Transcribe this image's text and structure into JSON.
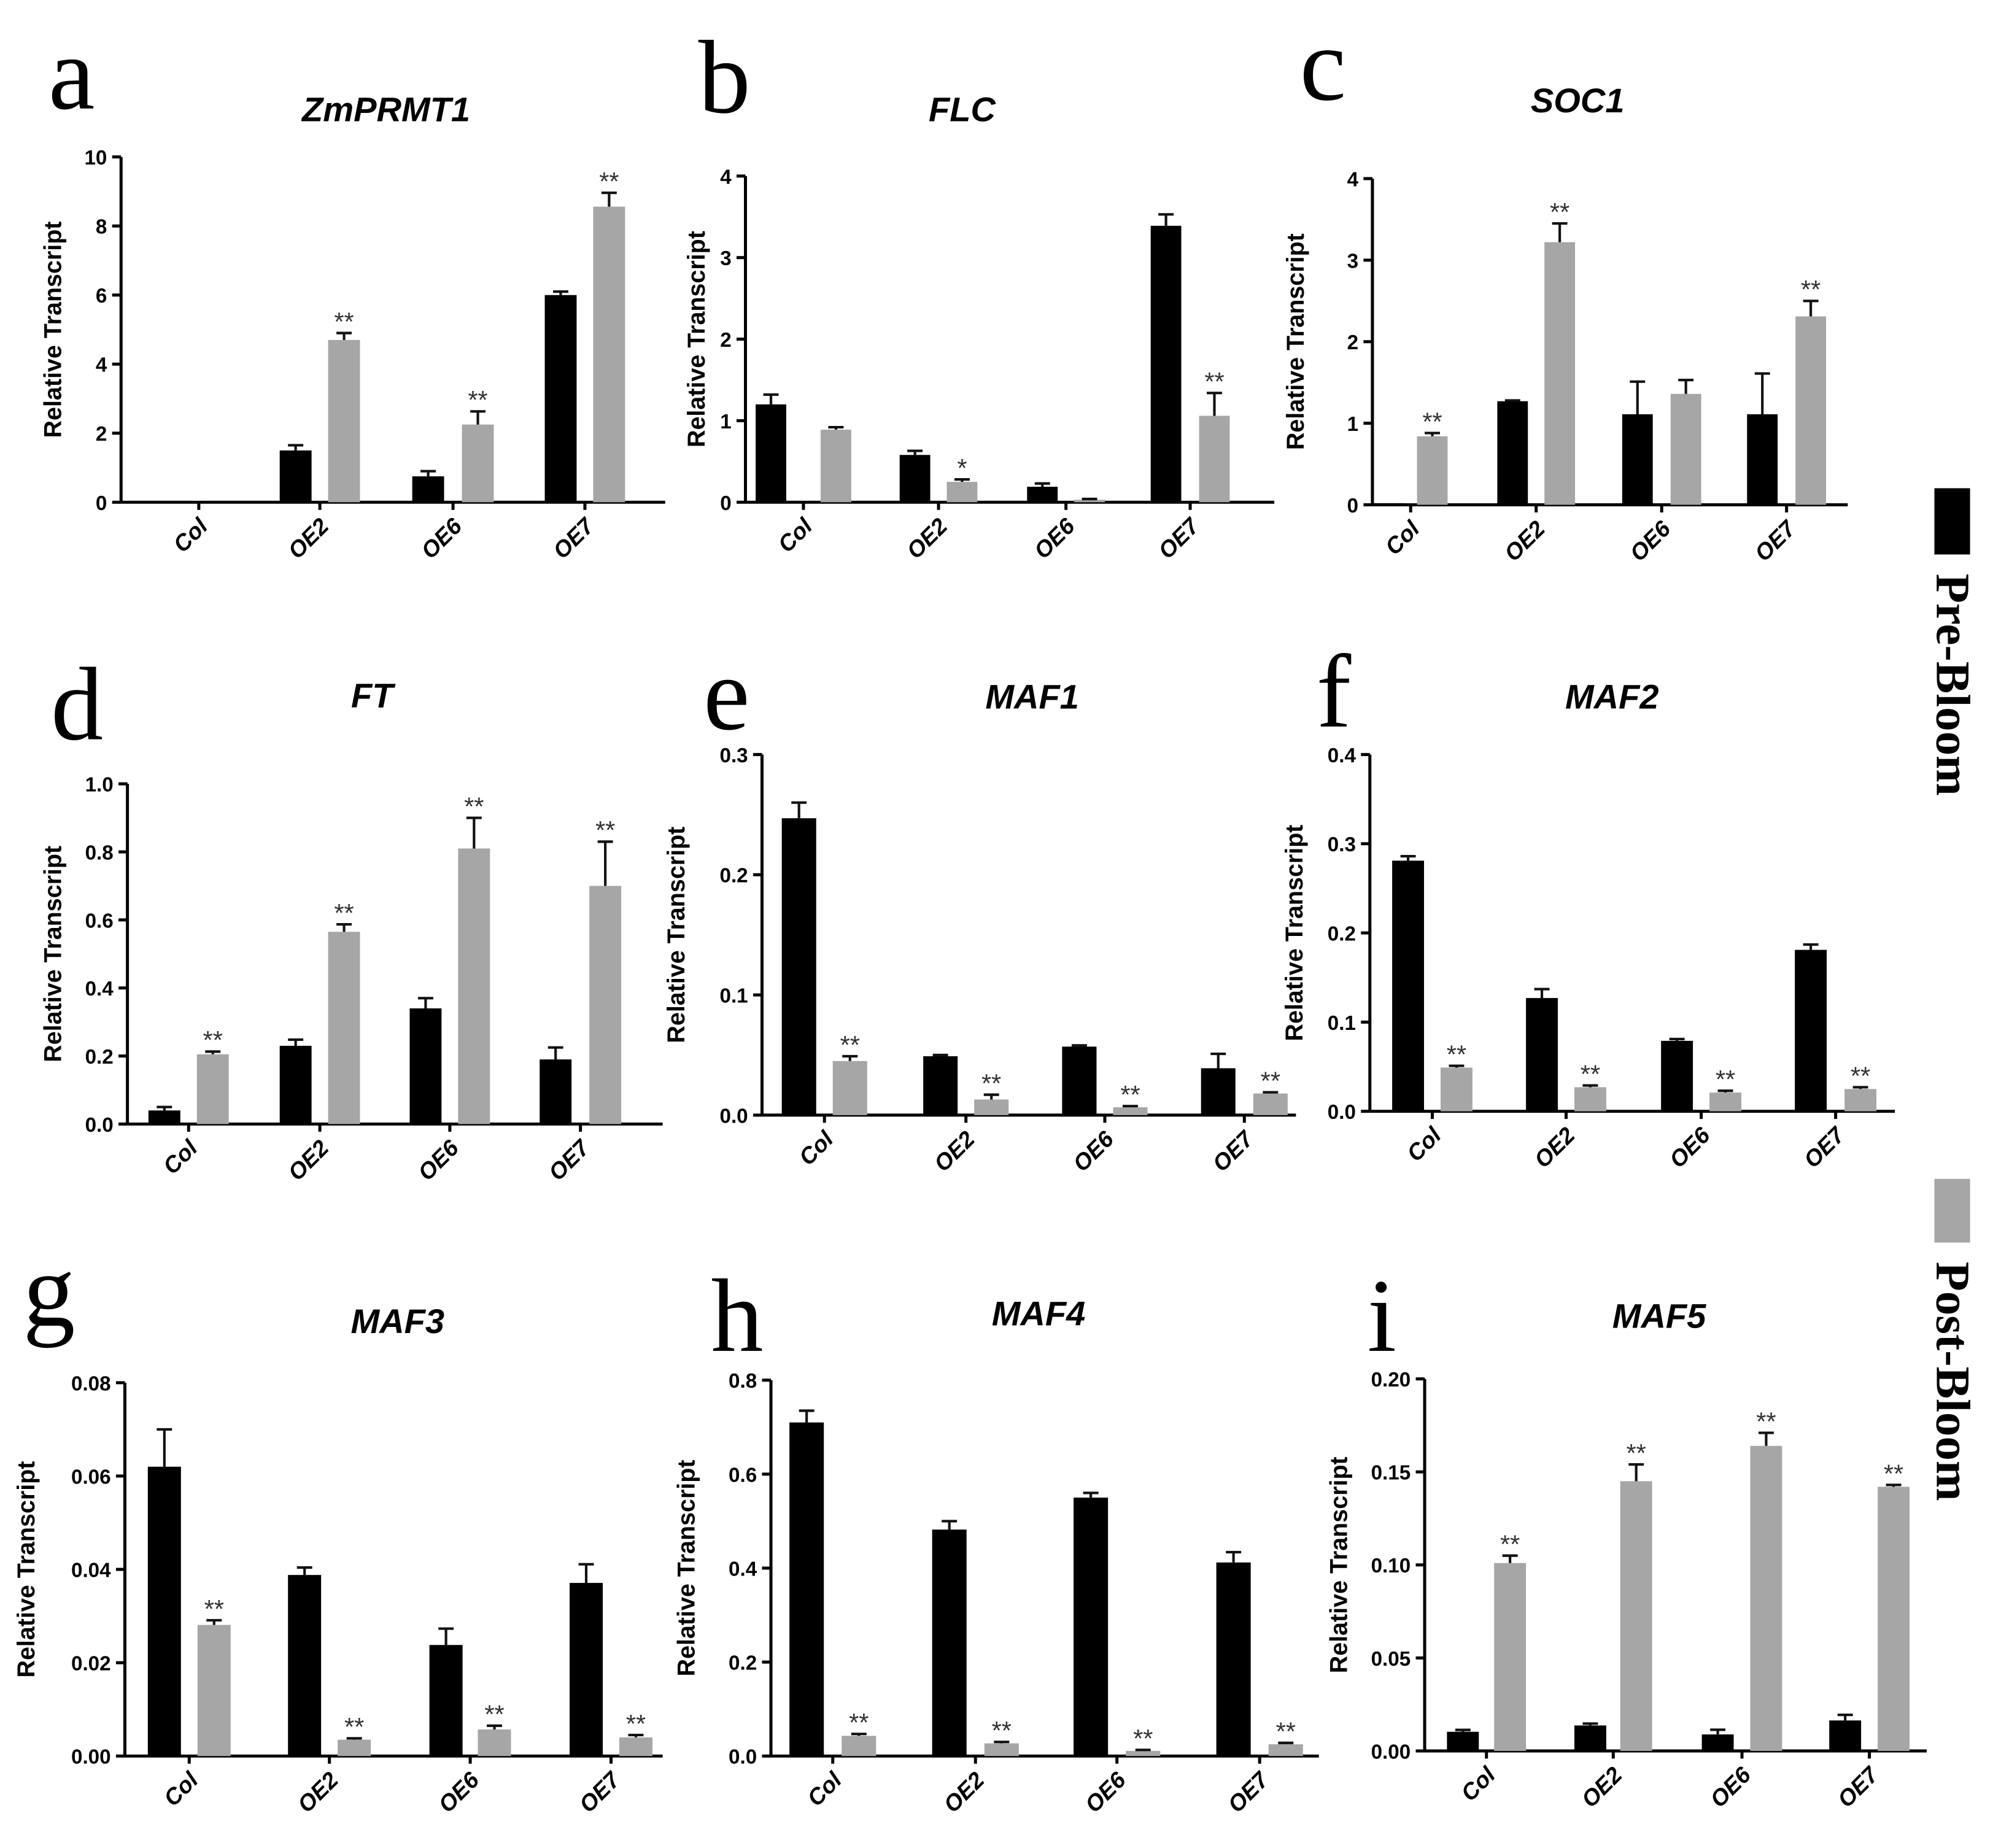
{
  "legend": [
    {
      "label": "Pre-Bloom",
      "color": "#000000"
    },
    {
      "label": "Post-Bloom",
      "color": "#a6a6a6"
    }
  ],
  "chart_data": [
    {
      "panel": "a",
      "type": "bar",
      "title": "ZmPRMT1",
      "ylabel": "Relative Transcript",
      "categories": [
        "Col",
        "OE2",
        "OE6",
        "OE7"
      ],
      "ylim": [
        0,
        10
      ],
      "ytick_labels": [
        "0",
        "2",
        "4",
        "6",
        "8",
        "10"
      ],
      "series": [
        {
          "name": "Pre-Bloom",
          "values": [
            0,
            1.5,
            0.75,
            6.0
          ],
          "errors": [
            0,
            0.15,
            0.15,
            0.1
          ]
        },
        {
          "name": "Post-Bloom",
          "values": [
            0,
            4.7,
            2.25,
            8.56
          ],
          "errors": [
            0,
            0.2,
            0.38,
            0.4
          ],
          "significance": [
            "",
            "**",
            "**",
            "**"
          ]
        }
      ]
    },
    {
      "panel": "b",
      "type": "bar",
      "title": "FLC",
      "ylabel": "Relative Transcript",
      "categories": [
        "Col",
        "OE2",
        "OE6",
        "OE7"
      ],
      "ylim": [
        0,
        4
      ],
      "ytick_labels": [
        "0",
        "1",
        "2",
        "3",
        "4"
      ],
      "series": [
        {
          "name": "Pre-Bloom",
          "values": [
            1.2,
            0.58,
            0.19,
            3.39
          ],
          "errors": [
            0.12,
            0.05,
            0.04,
            0.14
          ]
        },
        {
          "name": "Post-Bloom",
          "values": [
            0.89,
            0.25,
            0.03,
            1.06
          ],
          "errors": [
            0.03,
            0.03,
            0.01,
            0.28
          ],
          "significance": [
            "",
            "*",
            "",
            "**"
          ]
        }
      ]
    },
    {
      "panel": "c",
      "type": "bar",
      "title": "SOC1",
      "ylabel": "Relative Transcript",
      "categories": [
        "Col",
        "OE2",
        "OE6",
        "OE7"
      ],
      "ylim": [
        0,
        4
      ],
      "ytick_labels": [
        "0",
        "1",
        "2",
        "3",
        "4"
      ],
      "series": [
        {
          "name": "Pre-Bloom",
          "values": [
            0.02,
            1.27,
            1.11,
            1.11
          ],
          "errors": [
            0,
            0.01,
            0.4,
            0.5
          ]
        },
        {
          "name": "Post-Bloom",
          "values": [
            0.84,
            3.22,
            1.36,
            2.31
          ],
          "errors": [
            0.04,
            0.23,
            0.17,
            0.19
          ],
          "significance": [
            "**",
            "**",
            "",
            "**"
          ]
        }
      ]
    },
    {
      "panel": "d",
      "type": "bar",
      "title": "FT",
      "ylabel": "Relative Transcript",
      "categories": [
        "Col",
        "OE2",
        "OE6",
        "OE7"
      ],
      "ylim": [
        0,
        1.0
      ],
      "ytick_labels": [
        "0.0",
        "0.2",
        "0.4",
        "0.6",
        "0.8",
        "1.0"
      ],
      "series": [
        {
          "name": "Pre-Bloom",
          "values": [
            0.04,
            0.23,
            0.34,
            0.19
          ],
          "errors": [
            0.01,
            0.018,
            0.03,
            0.035
          ]
        },
        {
          "name": "Post-Bloom",
          "values": [
            0.205,
            0.565,
            0.81,
            0.7
          ],
          "errors": [
            0.008,
            0.022,
            0.09,
            0.13
          ],
          "significance": [
            "**",
            "**",
            "**",
            "**"
          ]
        }
      ]
    },
    {
      "panel": "e",
      "type": "bar",
      "title": "MAF1",
      "ylabel": "Relative Transcript",
      "categories": [
        "Col",
        "OE2",
        "OE6",
        "OE7"
      ],
      "ylim": [
        0,
        0.3
      ],
      "ytick_labels": [
        "0.0",
        "0.1",
        "0.2",
        "0.3"
      ],
      "series": [
        {
          "name": "Pre-Bloom",
          "values": [
            0.247,
            0.049,
            0.057,
            0.039
          ],
          "errors": [
            0.013,
            0.001,
            0.001,
            0.012
          ]
        },
        {
          "name": "Post-Bloom",
          "values": [
            0.045,
            0.013,
            0.0065,
            0.018
          ],
          "errors": [
            0.004,
            0.004,
            0.001,
            0.001
          ],
          "significance": [
            "**",
            "**",
            "**",
            "**"
          ]
        }
      ]
    },
    {
      "panel": "f",
      "type": "bar",
      "title": "MAF2",
      "ylabel": "Relative Transcript",
      "categories": [
        "Col",
        "OE2",
        "OE6",
        "OE7"
      ],
      "ylim": [
        0,
        0.4
      ],
      "ytick_labels": [
        "0.0",
        "0.1",
        "0.2",
        "0.3",
        "0.4"
      ],
      "series": [
        {
          "name": "Pre-Bloom",
          "values": [
            0.281,
            0.127,
            0.079,
            0.181
          ],
          "errors": [
            0.005,
            0.01,
            0.002,
            0.006
          ]
        },
        {
          "name": "Post-Bloom",
          "values": [
            0.049,
            0.027,
            0.021,
            0.025
          ],
          "errors": [
            0.002,
            0.002,
            0.002,
            0.002
          ],
          "significance": [
            "**",
            "**",
            "**",
            "**"
          ]
        }
      ]
    },
    {
      "panel": "g",
      "type": "bar",
      "title": "MAF3",
      "ylabel": "Relative Transcript",
      "categories": [
        "Col",
        "OE2",
        "OE6",
        "OE7"
      ],
      "ylim": [
        0,
        0.08
      ],
      "ytick_labels": [
        "0.00",
        "0.02",
        "0.04",
        "0.06",
        "0.08"
      ],
      "series": [
        {
          "name": "Pre-Bloom",
          "values": [
            0.062,
            0.0388,
            0.0238,
            0.0371
          ],
          "errors": [
            0.008,
            0.0016,
            0.0035,
            0.004
          ]
        },
        {
          "name": "Post-Bloom",
          "values": [
            0.0281,
            0.0035,
            0.0057,
            0.004
          ],
          "errors": [
            0.001,
            0.0003,
            0.0008,
            0.0005
          ],
          "significance": [
            "**",
            "**",
            "**",
            "**"
          ]
        }
      ]
    },
    {
      "panel": "h",
      "type": "bar",
      "title": "MAF4",
      "ylabel": "Relative Transcript",
      "categories": [
        "Col",
        "OE2",
        "OE6",
        "OE7"
      ],
      "ylim": [
        0,
        0.8
      ],
      "ytick_labels": [
        "0.0",
        "0.2",
        "0.4",
        "0.6",
        "0.8"
      ],
      "series": [
        {
          "name": "Pre-Bloom",
          "values": [
            0.71,
            0.482,
            0.55,
            0.412
          ],
          "errors": [
            0.025,
            0.018,
            0.01,
            0.022
          ]
        },
        {
          "name": "Post-Bloom",
          "values": [
            0.043,
            0.027,
            0.011,
            0.025
          ],
          "errors": [
            0.004,
            0.003,
            0.002,
            0.003
          ],
          "significance": [
            "**",
            "**",
            "**",
            "**"
          ]
        }
      ]
    },
    {
      "panel": "i",
      "type": "bar",
      "title": "MAF5",
      "ylabel": "Relative Transcript",
      "categories": [
        "Col",
        "OE2",
        "OE6",
        "OE7"
      ],
      "ylim": [
        0,
        0.2
      ],
      "ytick_labels": [
        "0.00",
        "0.05",
        "0.10",
        "0.15",
        "0.20"
      ],
      "series": [
        {
          "name": "Pre-Bloom",
          "values": [
            0.0103,
            0.0137,
            0.0089,
            0.0164
          ],
          "errors": [
            0.001,
            0.001,
            0.0025,
            0.003
          ]
        },
        {
          "name": "Post-Bloom",
          "values": [
            0.101,
            0.145,
            0.164,
            0.142
          ],
          "errors": [
            0.004,
            0.009,
            0.007,
            0.001
          ],
          "significance": [
            "**",
            "**",
            "**",
            "**"
          ]
        }
      ]
    }
  ]
}
